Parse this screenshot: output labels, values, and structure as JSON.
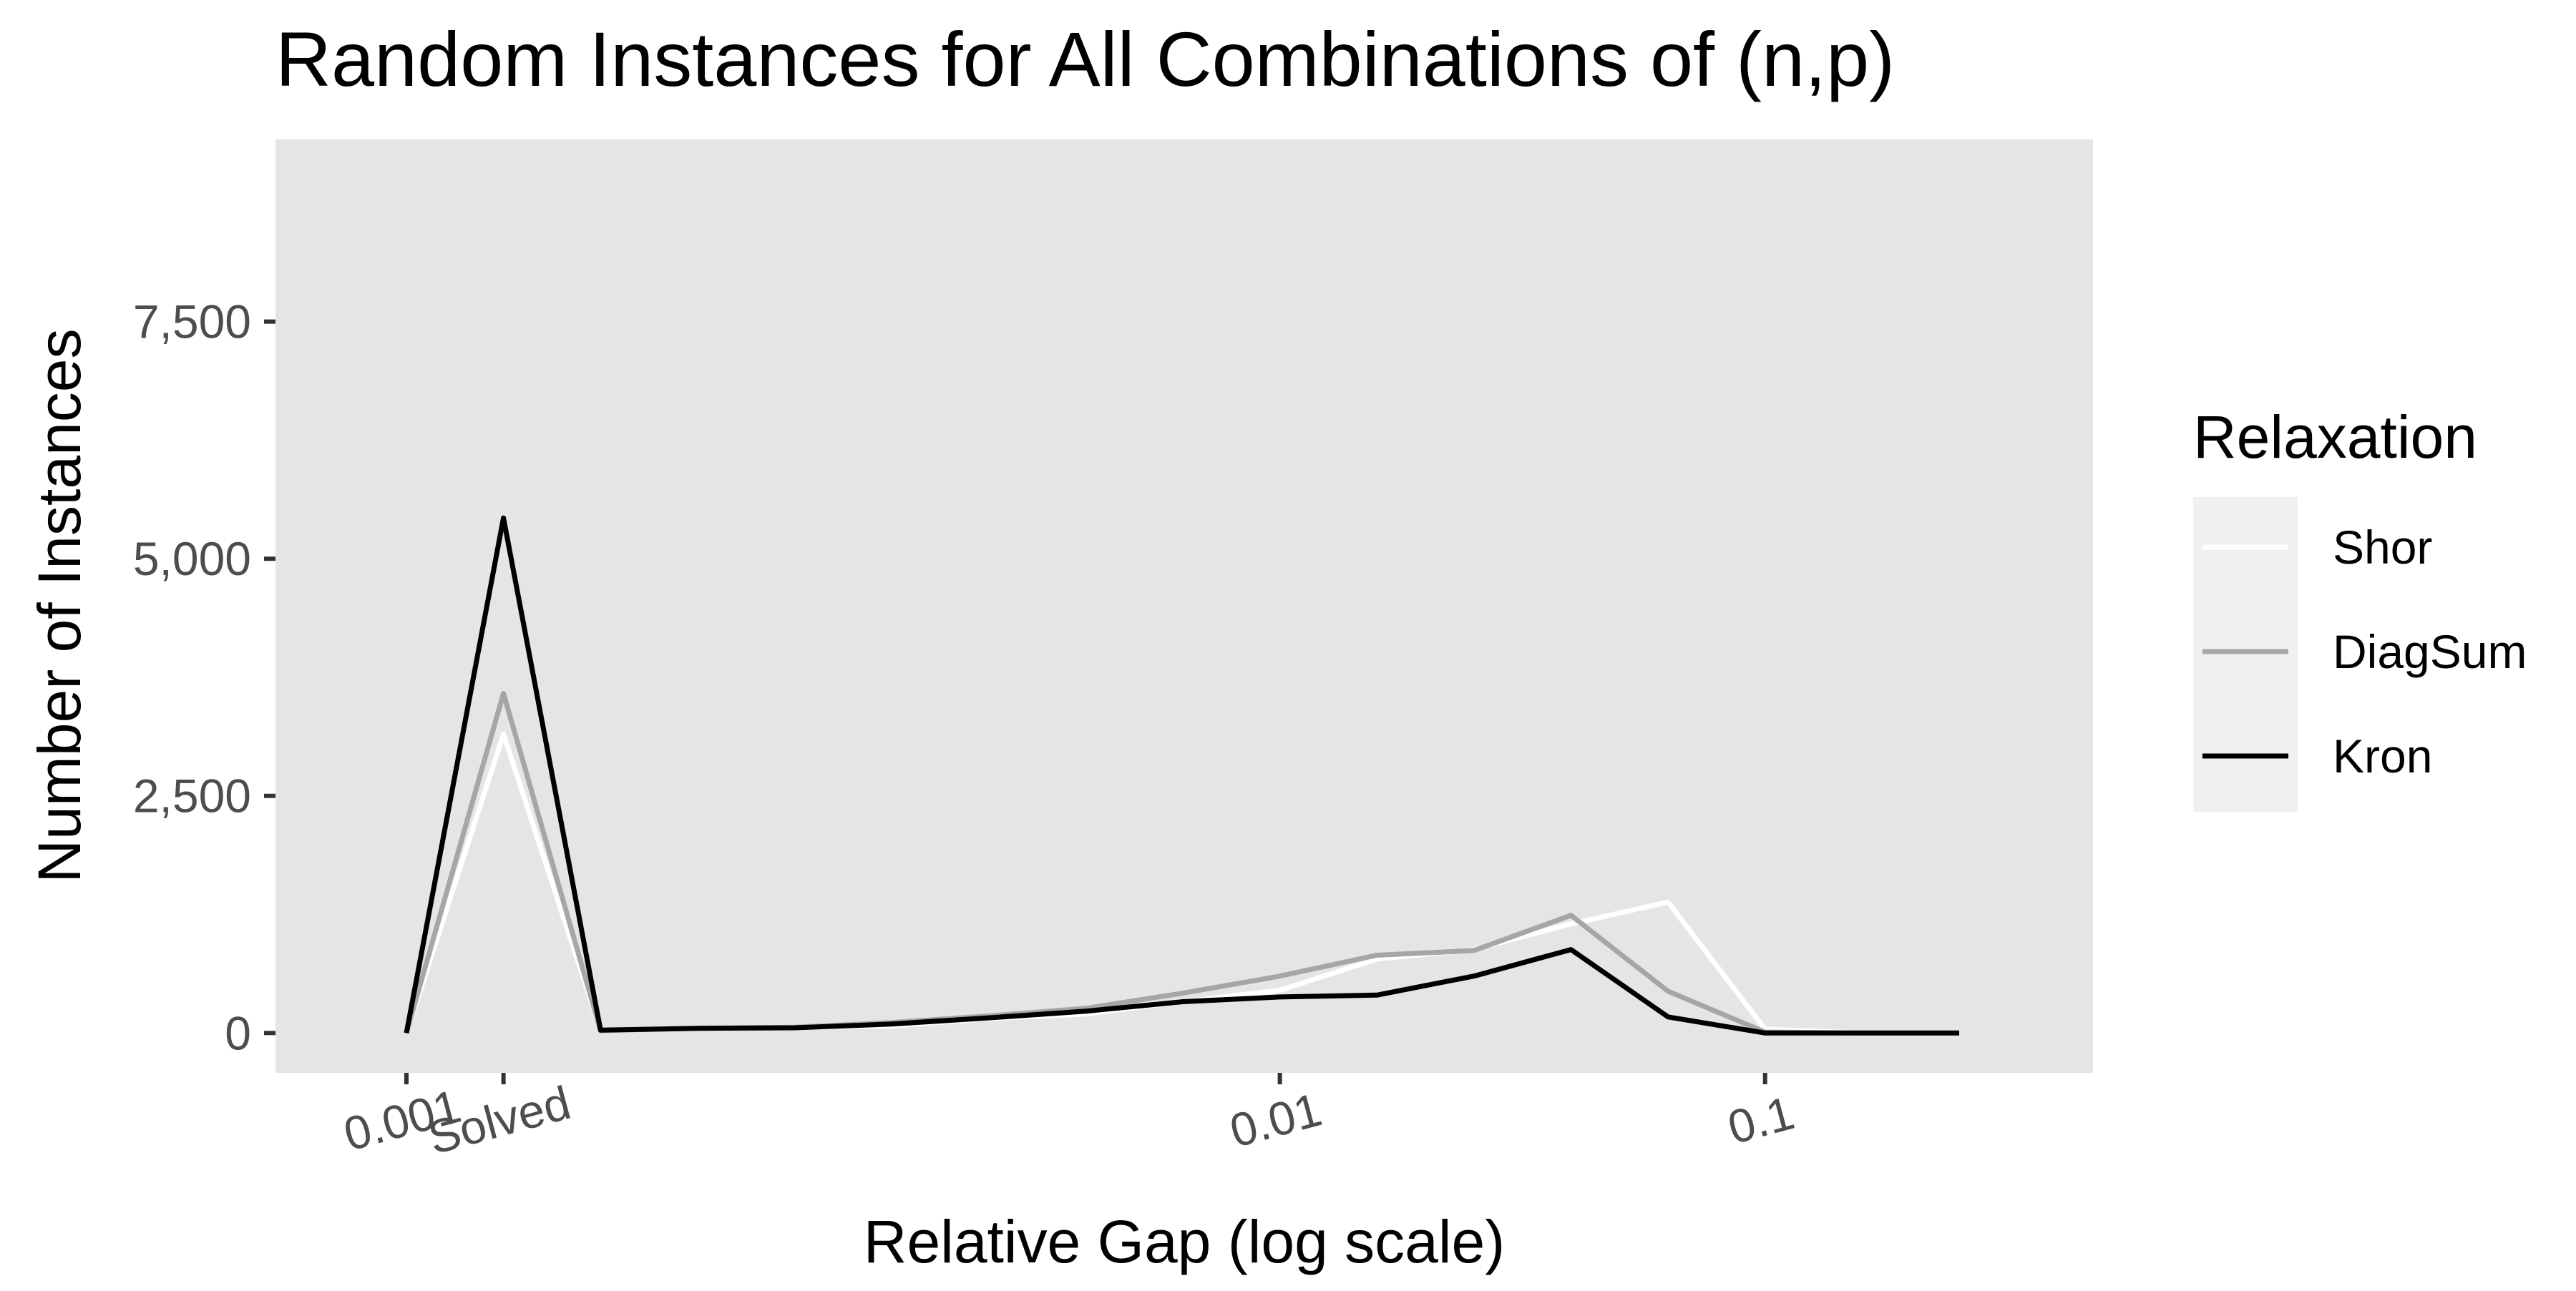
{
  "chart_data": {
    "type": "line",
    "title": "Random Instances for All Combinations of (n,p)",
    "xlabel": "Relative Gap (log scale)",
    "ylabel": "Number of Instances",
    "x_scale": "log",
    "x_ticks": [
      "Solved",
      "0.001",
      "0.01",
      "0.1"
    ],
    "y_ticks": [
      "0",
      "2,500",
      "5,000",
      "7,500"
    ],
    "ylim": [
      -420,
      9420
    ],
    "grid": false,
    "legend": {
      "title": "Relaxation",
      "position": "right"
    },
    "x": [
      "",
      "Solved",
      "",
      "",
      "",
      "",
      "",
      "",
      "",
      "0.01",
      "",
      "",
      "",
      "",
      "0.1",
      "",
      ""
    ],
    "series": [
      {
        "name": "Shor",
        "color": "#ffffff",
        "values": [
          0,
          3150,
          25,
          45,
          55,
          75,
          150,
          200,
          330,
          450,
          780,
          880,
          1150,
          1380,
          40,
          0,
          0
        ]
      },
      {
        "name": "DiagSum",
        "color": "#a6a6a6",
        "values": [
          0,
          3580,
          25,
          50,
          60,
          110,
          180,
          260,
          420,
          600,
          820,
          870,
          1240,
          440,
          10,
          0,
          0
        ]
      },
      {
        "name": "Kron",
        "color": "#000000",
        "values": [
          0,
          5430,
          30,
          50,
          55,
          95,
          160,
          230,
          330,
          380,
          400,
          600,
          880,
          170,
          0,
          0,
          0
        ]
      }
    ]
  }
}
